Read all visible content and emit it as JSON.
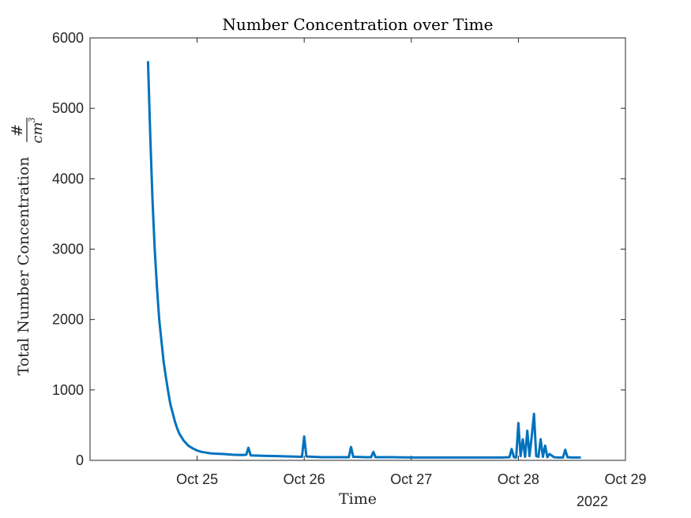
{
  "chart_data": {
    "type": "line",
    "title": "Number Concentration over Time",
    "xlabel": "Time",
    "ylabel": "Total Number Concentration",
    "ylabel_fraction": {
      "numerator": "#",
      "denominator": "cm",
      "exponent": "3"
    },
    "year_label": "2022",
    "x_axis_type": "date",
    "xlim": [
      "2022-10-24T00:00",
      "2022-10-29T00:00"
    ],
    "ylim": [
      0,
      6000
    ],
    "x_ticks": [
      {
        "x": "2022-10-25T00:00",
        "label": "Oct 25"
      },
      {
        "x": "2022-10-26T00:00",
        "label": "Oct 26"
      },
      {
        "x": "2022-10-27T00:00",
        "label": "Oct 27"
      },
      {
        "x": "2022-10-28T00:00",
        "label": "Oct 28"
      },
      {
        "x": "2022-10-29T00:00",
        "label": "Oct 29"
      }
    ],
    "y_ticks": [
      {
        "y": 0,
        "label": "0"
      },
      {
        "y": 1000,
        "label": "1000"
      },
      {
        "y": 2000,
        "label": "2000"
      },
      {
        "y": 3000,
        "label": "3000"
      },
      {
        "y": 4000,
        "label": "4000"
      },
      {
        "y": 5000,
        "label": "5000"
      },
      {
        "y": 6000,
        "label": "6000"
      }
    ],
    "grid": false,
    "series_color": "#0072BD",
    "series": [
      {
        "x": [
          "2022-10-24T13:00",
          "2022-10-24T13:30",
          "2022-10-24T14:00",
          "2022-10-24T14:30",
          "2022-10-24T15:00",
          "2022-10-24T15:30",
          "2022-10-24T16:00",
          "2022-10-24T16:30",
          "2022-10-24T17:00",
          "2022-10-24T17:30",
          "2022-10-24T18:00",
          "2022-10-24T18:30",
          "2022-10-24T19:00",
          "2022-10-24T19:30",
          "2022-10-24T20:00",
          "2022-10-24T20:30",
          "2022-10-24T21:00",
          "2022-10-24T22:00",
          "2022-10-24T23:00",
          "2022-10-25T00:00",
          "2022-10-25T01:00",
          "2022-10-25T02:00",
          "2022-10-25T03:00",
          "2022-10-25T04:00",
          "2022-10-25T06:00",
          "2022-10-25T08:00",
          "2022-10-25T10:00",
          "2022-10-25T11:00",
          "2022-10-25T11:30",
          "2022-10-25T12:00",
          "2022-10-25T15:00",
          "2022-10-25T18:00",
          "2022-10-25T21:00",
          "2022-10-25T23:30",
          "2022-10-26T00:00",
          "2022-10-26T00:30",
          "2022-10-26T04:00",
          "2022-10-26T08:00",
          "2022-10-26T10:00",
          "2022-10-26T10:30",
          "2022-10-26T11:00",
          "2022-10-26T14:00",
          "2022-10-26T15:00",
          "2022-10-26T15:30",
          "2022-10-26T16:00",
          "2022-10-26T20:00",
          "2022-10-27T00:00",
          "2022-10-27T04:00",
          "2022-10-27T08:00",
          "2022-10-27T12:00",
          "2022-10-27T16:00",
          "2022-10-27T20:00",
          "2022-10-27T22:00",
          "2022-10-27T22:30",
          "2022-10-27T23:00",
          "2022-10-27T23:30",
          "2022-10-28T00:00",
          "2022-10-28T00:30",
          "2022-10-28T01:00",
          "2022-10-28T01:30",
          "2022-10-28T02:00",
          "2022-10-28T02:30",
          "2022-10-28T03:00",
          "2022-10-28T03:30",
          "2022-10-28T04:00",
          "2022-10-28T04:30",
          "2022-10-28T05:00",
          "2022-10-28T05:30",
          "2022-10-28T06:00",
          "2022-10-28T06:30",
          "2022-10-28T07:00",
          "2022-10-28T08:00",
          "2022-10-28T09:00",
          "2022-10-28T10:00",
          "2022-10-28T10:30",
          "2022-10-28T11:00",
          "2022-10-28T12:00",
          "2022-10-28T13:00",
          "2022-10-28T14:00"
        ],
        "values": [
          5670,
          4600,
          3700,
          3000,
          2450,
          2000,
          1700,
          1400,
          1180,
          980,
          800,
          680,
          560,
          460,
          380,
          330,
          280,
          210,
          170,
          140,
          120,
          110,
          100,
          95,
          90,
          80,
          75,
          80,
          180,
          70,
          65,
          60,
          55,
          50,
          340,
          55,
          45,
          45,
          45,
          190,
          50,
          45,
          45,
          120,
          45,
          45,
          40,
          40,
          40,
          40,
          40,
          40,
          45,
          160,
          45,
          40,
          530,
          60,
          300,
          50,
          420,
          60,
          350,
          660,
          60,
          50,
          300,
          50,
          210,
          45,
          90,
          45,
          40,
          40,
          150,
          45,
          40,
          40,
          40
        ]
      }
    ]
  }
}
